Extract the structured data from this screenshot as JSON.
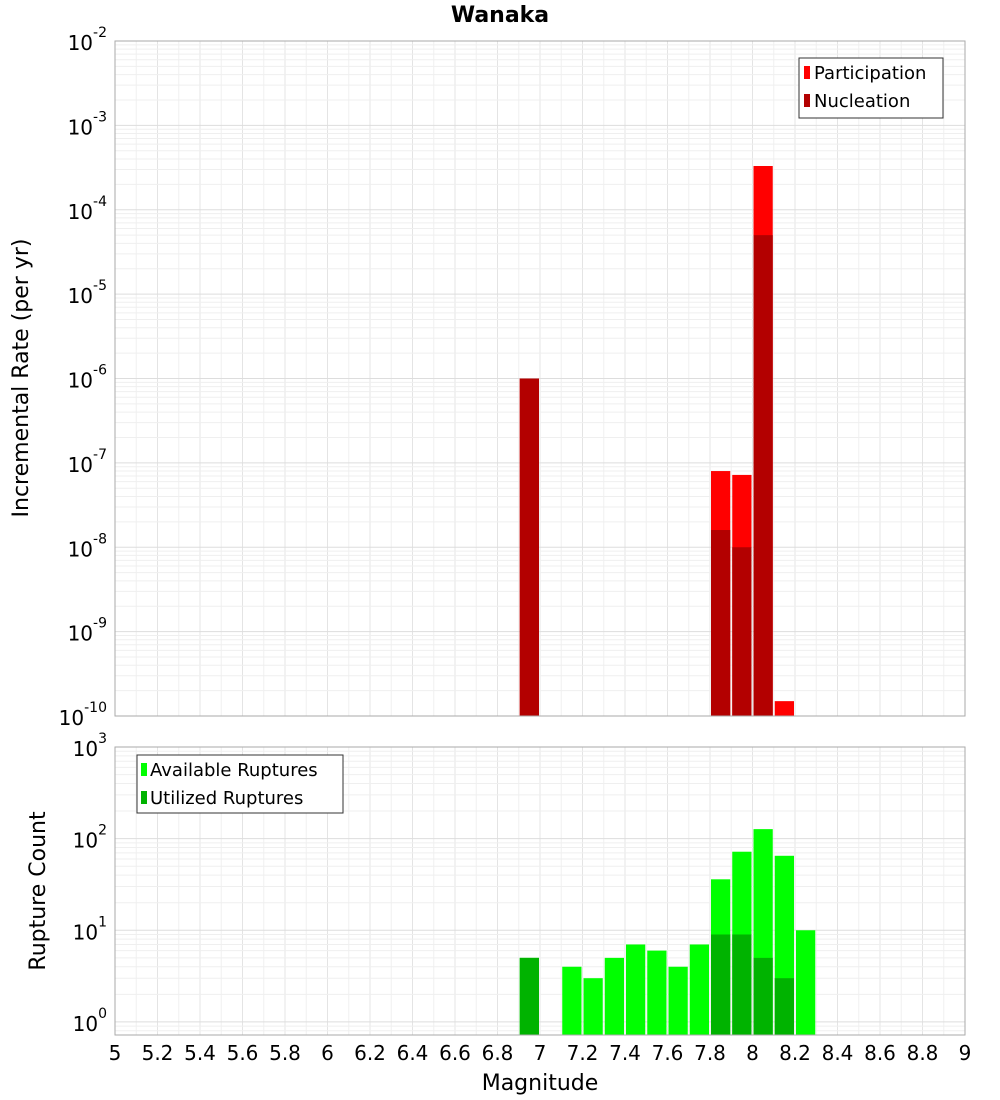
{
  "chart_data": [
    {
      "type": "bar",
      "title": "Wanaka",
      "xlabel": "Magnitude",
      "ylabel": "Incremental Rate (per yr)",
      "yscale": "log",
      "xlim": [
        5,
        9
      ],
      "ylim": [
        1e-10,
        0.01
      ],
      "ytick_exponents": [
        "-10",
        "-9",
        "-8",
        "-7",
        "-6",
        "-5",
        "-4",
        "-3",
        "-2"
      ],
      "grid": true,
      "legend_position": "top-right",
      "bin_width": 0.1,
      "series": [
        {
          "name": "Participation",
          "color": "#ff0000",
          "points": [
            {
              "x": 6.95,
              "y": 1e-06
            },
            {
              "x": 7.85,
              "y": 8e-08
            },
            {
              "x": 7.95,
              "y": 7.2e-08
            },
            {
              "x": 8.05,
              "y": 0.00033
            },
            {
              "x": 8.15,
              "y": 1.5e-10
            }
          ]
        },
        {
          "name": "Nucleation",
          "color": "#b30000",
          "points": [
            {
              "x": 6.95,
              "y": 1e-06
            },
            {
              "x": 7.85,
              "y": 1.6e-08
            },
            {
              "x": 7.95,
              "y": 1e-08
            },
            {
              "x": 8.05,
              "y": 5e-05
            }
          ]
        }
      ]
    },
    {
      "type": "bar",
      "xlabel": "Magnitude",
      "ylabel": "Rupture Count",
      "yscale": "log",
      "xlim": [
        5,
        9
      ],
      "ylim": [
        0.72,
        1000
      ],
      "ytick_exponents": [
        "0",
        "1",
        "2",
        "3"
      ],
      "x_ticks": [
        "5",
        "5.2",
        "5.4",
        "5.6",
        "5.8",
        "6",
        "6.2",
        "6.4",
        "6.6",
        "6.8",
        "7",
        "7.2",
        "7.4",
        "7.6",
        "7.8",
        "8",
        "8.2",
        "8.4",
        "8.6",
        "8.8",
        "9"
      ],
      "grid": true,
      "legend_position": "top-left",
      "bin_width": 0.1,
      "series": [
        {
          "name": "Available Ruptures",
          "color": "#00ff00",
          "points": [
            {
              "x": 6.95,
              "y": 5
            },
            {
              "x": 7.15,
              "y": 4
            },
            {
              "x": 7.25,
              "y": 3
            },
            {
              "x": 7.35,
              "y": 5
            },
            {
              "x": 7.45,
              "y": 7
            },
            {
              "x": 7.55,
              "y": 6
            },
            {
              "x": 7.65,
              "y": 4
            },
            {
              "x": 7.75,
              "y": 7
            },
            {
              "x": 7.85,
              "y": 36
            },
            {
              "x": 7.95,
              "y": 72
            },
            {
              "x": 8.05,
              "y": 127
            },
            {
              "x": 8.15,
              "y": 65
            },
            {
              "x": 8.25,
              "y": 10
            }
          ]
        },
        {
          "name": "Utilized Ruptures",
          "color": "#00b300",
          "points": [
            {
              "x": 6.95,
              "y": 5
            },
            {
              "x": 7.85,
              "y": 9
            },
            {
              "x": 7.95,
              "y": 9
            },
            {
              "x": 8.05,
              "y": 5
            },
            {
              "x": 8.15,
              "y": 3
            }
          ]
        }
      ]
    }
  ]
}
